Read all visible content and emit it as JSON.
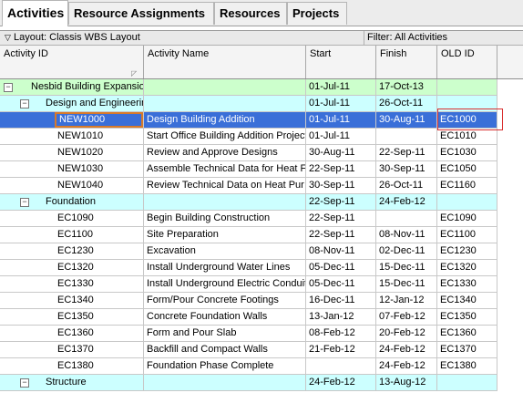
{
  "tabs": [
    "Activities",
    "Resource Assignments",
    "Resources",
    "Projects"
  ],
  "layout_label": "Layout: Classis WBS Layout",
  "filter_label": "Filter: All Activities",
  "columns": [
    "Activity ID",
    "Activity Name",
    "Start",
    "Finish",
    "OLD ID"
  ],
  "rows": [
    {
      "type": "wbs0",
      "id": "Nesbid Building Expansion",
      "name": "",
      "start": "01-Jul-11",
      "finish": "17-Oct-13",
      "old": ""
    },
    {
      "type": "wbs1",
      "id": "Design and Engineering",
      "name": "",
      "start": "01-Jul-11",
      "finish": "26-Oct-11",
      "old": ""
    },
    {
      "type": "sel",
      "id": "NEW1000",
      "name": "Design Building Addition",
      "start": "01-Jul-11",
      "finish": "30-Aug-11",
      "old": "EC1000"
    },
    {
      "type": "act",
      "id": "NEW1010",
      "name": "Start Office Building Addition Project",
      "start": "01-Jul-11",
      "finish": "",
      "old": "EC1010"
    },
    {
      "type": "act",
      "id": "NEW1020",
      "name": "Review and Approve Designs",
      "start": "30-Aug-11",
      "finish": "22-Sep-11",
      "old": "EC1030"
    },
    {
      "type": "act",
      "id": "NEW1030",
      "name": "Assemble Technical Data for Heat F",
      "start": "22-Sep-11",
      "finish": "30-Sep-11",
      "old": "EC1050"
    },
    {
      "type": "act",
      "id": "NEW1040",
      "name": "Review Technical Data on Heat Pur",
      "start": "30-Sep-11",
      "finish": "26-Oct-11",
      "old": "EC1160"
    },
    {
      "type": "wbs1",
      "id": "Foundation",
      "name": "",
      "start": "22-Sep-11",
      "finish": "24-Feb-12",
      "old": ""
    },
    {
      "type": "act",
      "id": "EC1090",
      "name": "Begin Building Construction",
      "start": "22-Sep-11",
      "finish": "",
      "old": "EC1090"
    },
    {
      "type": "act",
      "id": "EC1100",
      "name": "Site Preparation",
      "start": "22-Sep-11",
      "finish": "08-Nov-11",
      "old": "EC1100"
    },
    {
      "type": "act",
      "id": "EC1230",
      "name": "Excavation",
      "start": "08-Nov-11",
      "finish": "02-Dec-11",
      "old": "EC1230"
    },
    {
      "type": "act",
      "id": "EC1320",
      "name": "Install Underground Water Lines",
      "start": "05-Dec-11",
      "finish": "15-Dec-11",
      "old": "EC1320"
    },
    {
      "type": "act",
      "id": "EC1330",
      "name": "Install Underground Electric Conduit",
      "start": "05-Dec-11",
      "finish": "15-Dec-11",
      "old": "EC1330"
    },
    {
      "type": "act",
      "id": "EC1340",
      "name": "Form/Pour Concrete Footings",
      "start": "16-Dec-11",
      "finish": "12-Jan-12",
      "old": "EC1340"
    },
    {
      "type": "act",
      "id": "EC1350",
      "name": "Concrete Foundation Walls",
      "start": "13-Jan-12",
      "finish": "07-Feb-12",
      "old": "EC1350"
    },
    {
      "type": "act",
      "id": "EC1360",
      "name": "Form and Pour Slab",
      "start": "08-Feb-12",
      "finish": "20-Feb-12",
      "old": "EC1360"
    },
    {
      "type": "act",
      "id": "EC1370",
      "name": "Backfill and Compact Walls",
      "start": "21-Feb-12",
      "finish": "24-Feb-12",
      "old": "EC1370"
    },
    {
      "type": "act",
      "id": "EC1380",
      "name": "Foundation Phase Complete",
      "start": "",
      "finish": "24-Feb-12",
      "old": "EC1380"
    },
    {
      "type": "wbs1",
      "id": "Structure",
      "name": "",
      "start": "24-Feb-12",
      "finish": "13-Aug-12",
      "old": ""
    }
  ],
  "colors": {
    "wbs_level0": "#ccffcc",
    "wbs_level1": "#ccffff",
    "selection": "#3a6fd8",
    "highlight_box": "#d93030"
  }
}
